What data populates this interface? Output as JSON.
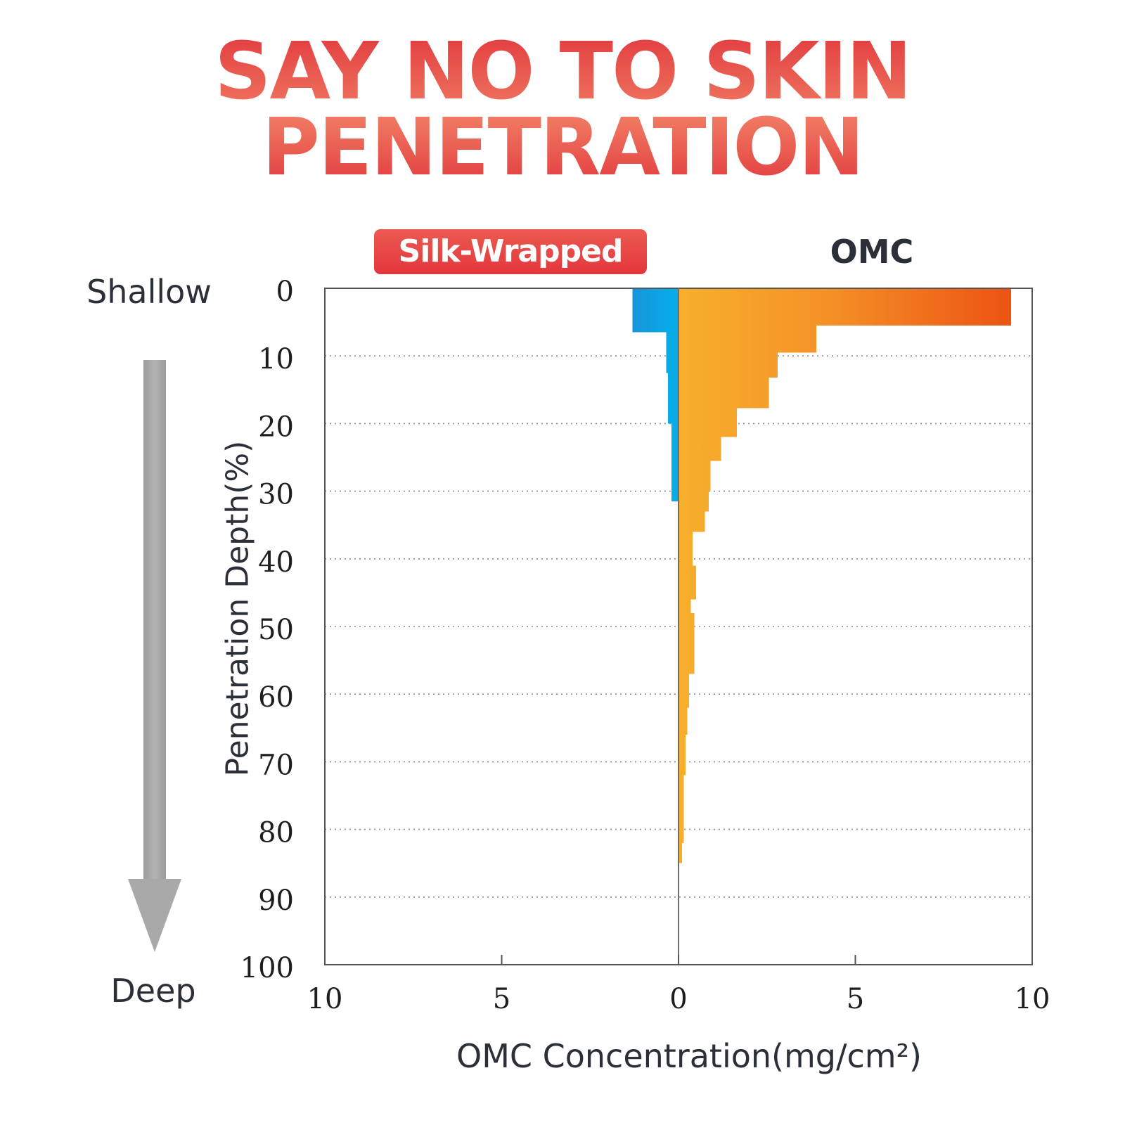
{
  "title": {
    "line1": "SAY NO TO SKIN",
    "line2": "PENETRATION"
  },
  "legend": {
    "left_label": "Silk-Wrapped",
    "right_label": "OMC"
  },
  "direction": {
    "top": "Shallow",
    "bottom": "Deep"
  },
  "colors": {
    "title": "#e23d40",
    "silk_series": "#1a9fe0",
    "omc_series": "#f7a62a",
    "omc_series_peak": "#ee5a16",
    "arrow": "#a9a9a9"
  },
  "chart_data": {
    "type": "bar",
    "orientation": "horizontal-butterfly",
    "xlabel": "OMC Concentration(mg/cm²)",
    "ylabel": "Penetration Depth(%)",
    "x_ticks": [
      "10",
      "5",
      "0",
      "5",
      "10"
    ],
    "y_ticks": [
      "0",
      "10",
      "20",
      "30",
      "40",
      "50",
      "60",
      "70",
      "80",
      "90",
      "100"
    ],
    "xlim": [
      -10,
      10
    ],
    "ylim": [
      0,
      100
    ],
    "grid": true,
    "series": [
      {
        "name": "Silk-Wrapped",
        "side": "left",
        "bins": [
          {
            "from": 0,
            "to": 6.5,
            "value": 1.3
          },
          {
            "from": 6.5,
            "to": 12.5,
            "value": 0.35
          },
          {
            "from": 12.5,
            "to": 20,
            "value": 0.3
          },
          {
            "from": 20,
            "to": 31.5,
            "value": 0.2
          }
        ]
      },
      {
        "name": "OMC",
        "side": "right",
        "bins": [
          {
            "from": 0,
            "to": 5.5,
            "value": 9.4
          },
          {
            "from": 5.5,
            "to": 9.5,
            "value": 3.9
          },
          {
            "from": 9.5,
            "to": 13.2,
            "value": 2.8
          },
          {
            "from": 13.2,
            "to": 17.7,
            "value": 2.55
          },
          {
            "from": 17.7,
            "to": 22,
            "value": 1.65
          },
          {
            "from": 22,
            "to": 25.5,
            "value": 1.2
          },
          {
            "from": 25.5,
            "to": 30,
            "value": 0.9
          },
          {
            "from": 30,
            "to": 33,
            "value": 0.85
          },
          {
            "from": 33,
            "to": 36,
            "value": 0.75
          },
          {
            "from": 36,
            "to": 41,
            "value": 0.4
          },
          {
            "from": 41,
            "to": 46,
            "value": 0.5
          },
          {
            "from": 46,
            "to": 48,
            "value": 0.35
          },
          {
            "from": 48,
            "to": 57,
            "value": 0.45
          },
          {
            "from": 57,
            "to": 62,
            "value": 0.3
          },
          {
            "from": 62,
            "to": 66,
            "value": 0.25
          },
          {
            "from": 66,
            "to": 72,
            "value": 0.2
          },
          {
            "from": 72,
            "to": 78,
            "value": 0.15
          },
          {
            "from": 78,
            "to": 82,
            "value": 0.15
          },
          {
            "from": 82,
            "to": 85,
            "value": 0.1
          }
        ]
      }
    ]
  }
}
